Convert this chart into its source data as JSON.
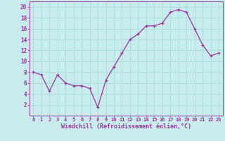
{
  "x": [
    0,
    1,
    2,
    3,
    4,
    5,
    6,
    7,
    8,
    9,
    10,
    11,
    12,
    13,
    14,
    15,
    16,
    17,
    18,
    19,
    20,
    21,
    22,
    23
  ],
  "y": [
    8,
    7.5,
    4.5,
    7.5,
    6,
    5.5,
    5.5,
    5,
    1.5,
    6.5,
    9,
    11.5,
    14,
    15,
    16.5,
    16.5,
    17,
    19,
    19.5,
    19,
    16,
    13,
    11,
    11.5
  ],
  "line_color": "#993399",
  "marker_color": "#993399",
  "bg_color": "#c8ecec",
  "grid_color": "#aadddd",
  "xlabel": "Windchill (Refroidissement éolien,°C)",
  "xlabel_color": "#993399",
  "tick_color": "#993399",
  "ylim": [
    0,
    21
  ],
  "yticks": [
    2,
    4,
    6,
    8,
    10,
    12,
    14,
    16,
    18,
    20
  ],
  "xticks": [
    0,
    1,
    2,
    3,
    4,
    5,
    6,
    7,
    8,
    9,
    10,
    11,
    12,
    13,
    14,
    15,
    16,
    17,
    18,
    19,
    20,
    21,
    22,
    23
  ],
  "xtick_labels": [
    "0",
    "1",
    "2",
    "3",
    "4",
    "5",
    "6",
    "7",
    "8",
    "9",
    "10",
    "11",
    "12",
    "13",
    "14",
    "15",
    "16",
    "17",
    "18",
    "19",
    "20",
    "21",
    "22",
    "23"
  ]
}
